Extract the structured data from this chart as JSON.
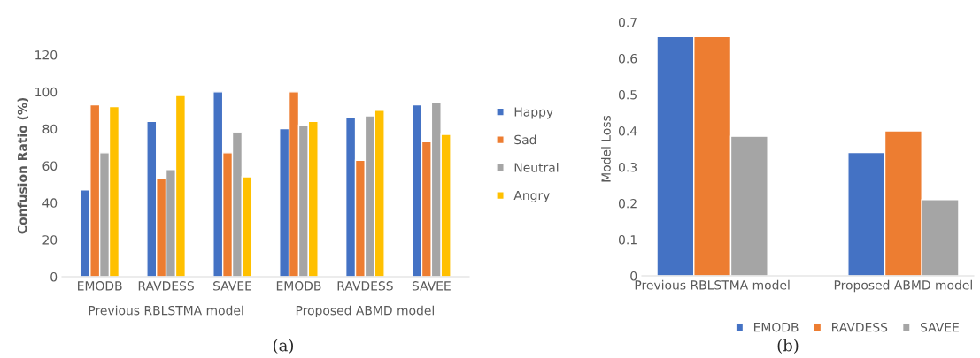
{
  "chart_data": [
    {
      "type": "bar",
      "ylabel": "Confusion Ratio (%)",
      "categories": [
        "EMODB",
        "RAVDESS",
        "SAVEE",
        "EMODB",
        "RAVDESS",
        "SAVEE"
      ],
      "series": [
        {
          "name": "Happy",
          "color": "#4472c4",
          "values": [
            47,
            84,
            100,
            80,
            86,
            93
          ]
        },
        {
          "name": "Sad",
          "color": "#ed7d31",
          "values": [
            93,
            53,
            67,
            100,
            63,
            73
          ]
        },
        {
          "name": "Neutral",
          "color": "#a5a5a5",
          "values": [
            67,
            58,
            78,
            82,
            87,
            94
          ]
        },
        {
          "name": "Angry",
          "color": "#ffc000",
          "values": [
            92,
            98,
            54,
            84,
            90,
            77
          ]
        }
      ],
      "ylim": [
        0,
        120
      ],
      "yticks": [
        0,
        20,
        40,
        60,
        80,
        100,
        120
      ],
      "grid": false,
      "legend": "right",
      "annotations": [
        "Previous RBLSTMA model",
        "Proposed ABMD model",
        "(a)"
      ]
    },
    {
      "type": "bar",
      "ylabel": "Model Loss",
      "categories": [
        "Previous RBLSTMA model",
        "Proposed ABMD model"
      ],
      "series": [
        {
          "name": "EMODB",
          "color": "#4472c4",
          "values": [
            0.66,
            0.34
          ]
        },
        {
          "name": "RAVDESS",
          "color": "#ed7d31",
          "values": [
            0.66,
            0.4
          ]
        },
        {
          "name": "SAVEE",
          "color": "#a5a5a5",
          "values": [
            0.385,
            0.21
          ]
        }
      ],
      "ylim": [
        0,
        0.7
      ],
      "yticks": [
        0,
        0.1,
        0.2,
        0.3,
        0.4,
        0.5,
        0.6,
        0.7
      ],
      "grid": false,
      "legend": "bottom",
      "annotations": [
        "(b)"
      ]
    }
  ]
}
